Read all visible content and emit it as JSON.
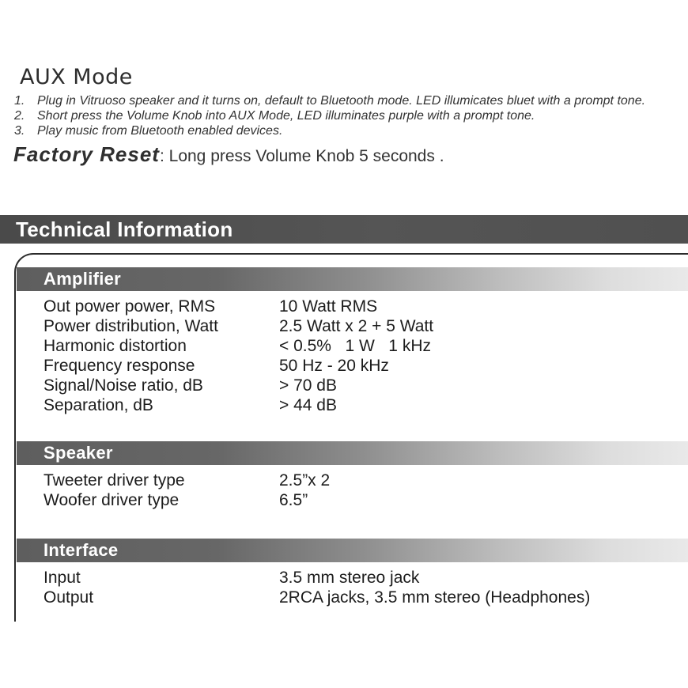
{
  "aux_mode": {
    "heading": "AUX Mode",
    "steps": [
      {
        "num": "1.",
        "text": "Plug in Vitruoso speaker and it turns on, default to Bluetooth mode. LED illumicates bluet with a prompt tone."
      },
      {
        "num": "2.",
        "text": "Short press the Volume Knob into AUX Mode, LED illuminates purple with a prompt tone."
      },
      {
        "num": "3.",
        "text": "Play music from Bluetooth enabled devices."
      }
    ]
  },
  "factory_reset": {
    "label": "Factory Reset",
    "text": ": Long press Volume Knob 5 seconds ."
  },
  "technical": {
    "title": "Technical Information",
    "colors": {
      "banner_bg": "#4f4f4f",
      "banner_text": "#ffffff",
      "section_bar_dark": "#5e5e5e",
      "section_bar_light": "#e9e9e9",
      "spec_text": "#1c1c1c"
    },
    "sections": [
      {
        "name": "Amplifier",
        "rows": [
          {
            "label": "Out power power, RMS",
            "value": "10 Watt RMS"
          },
          {
            "label": "Power distribution, Watt",
            "value": "2.5 Watt x 2 + 5 Watt"
          },
          {
            "label": "Harmonic distortion",
            "value": "< 0.5%   1 W   1 kHz"
          },
          {
            "label": "Frequency response",
            "value": "50 Hz - 20 kHz"
          },
          {
            "label": "Signal/Noise ratio, dB",
            "value": "> 70 dB"
          },
          {
            "label": "Separation, dB",
            "value": "> 44 dB"
          }
        ]
      },
      {
        "name": "Speaker",
        "rows": [
          {
            "label": "Tweeter driver type",
            "value": "2.5”x 2"
          },
          {
            "label": "Woofer driver type",
            "value": "6.5”"
          }
        ]
      },
      {
        "name": "Interface",
        "rows": [
          {
            "label": "Input",
            "value": "3.5 mm stereo jack"
          },
          {
            "label": "Output",
            "value": "2RCA jacks, 3.5 mm stereo (Headphones)"
          }
        ]
      }
    ]
  }
}
